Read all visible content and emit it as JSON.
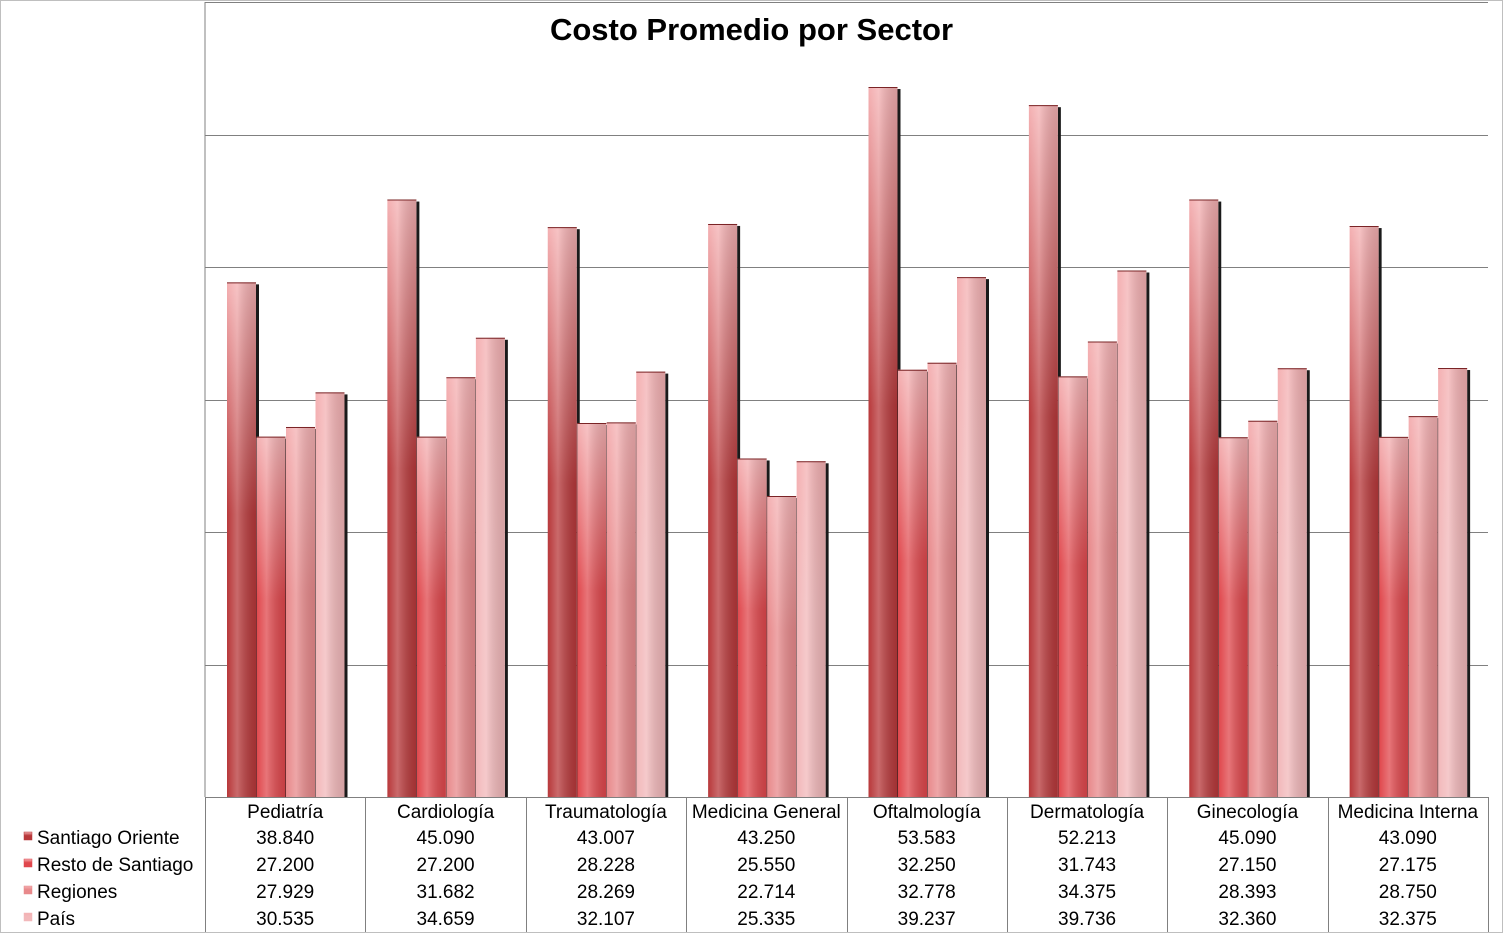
{
  "chart_data": {
    "type": "bar",
    "title": "Costo Promedio por Sector",
    "xlabel": "",
    "ylabel": "",
    "ylim": [
      0,
      60000
    ],
    "grid": true,
    "legend": "data-table-left",
    "categories": [
      "Pediatría",
      "Cardiología",
      "Traumatología",
      "Medicina General",
      "Oftalmología",
      "Dermatología",
      "Ginecología",
      "Medicina Interna"
    ],
    "series": [
      {
        "name": "Santiago Oriente",
        "values": [
          38840,
          45090,
          43007,
          43250,
          53583,
          52213,
          45090,
          43090
        ],
        "labels": [
          "38.840",
          "45.090",
          "43.007",
          "43.250",
          "53.583",
          "52.213",
          "45.090",
          "43.090"
        ],
        "color": "#b8383a"
      },
      {
        "name": "Resto de Santiago",
        "values": [
          27200,
          27200,
          28228,
          25550,
          32250,
          31743,
          27150,
          27175
        ],
        "labels": [
          "27.200",
          "27.200",
          "28.228",
          "25.550",
          "32.250",
          "31.743",
          "27.150",
          "27.175"
        ],
        "color": "#e0474c"
      },
      {
        "name": "Regiones",
        "values": [
          27929,
          31682,
          28269,
          22714,
          32778,
          34375,
          28393,
          28750
        ],
        "labels": [
          "27.929",
          "31.682",
          "28.269",
          "22.714",
          "32.778",
          "34.375",
          "28.393",
          "28.750"
        ],
        "color": "#e8898b"
      },
      {
        "name": "País",
        "values": [
          30535,
          34659,
          32107,
          25335,
          39237,
          39736,
          32360,
          32375
        ],
        "labels": [
          "30.535",
          "34.659",
          "32.107",
          "25.335",
          "39.237",
          "39.736",
          "32.360",
          "32.375"
        ],
        "color": "#f2b8ba"
      }
    ]
  }
}
